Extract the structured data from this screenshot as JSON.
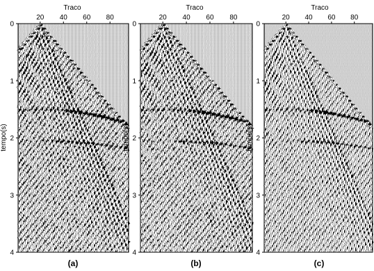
{
  "figure": {
    "panels": [
      {
        "id": "a",
        "label": "(a)",
        "x_title": "Traco",
        "y_title": "tempo(s)"
      },
      {
        "id": "b",
        "label": "(b)",
        "x_title": "Traco",
        "y_title": "tempo(s)"
      },
      {
        "id": "c",
        "label": "(c)",
        "x_title": "Traco",
        "y_title": "tempo(s)"
      }
    ],
    "x_ticks": [
      "20",
      "40",
      "60",
      "80"
    ],
    "x_tick_values": [
      20,
      40,
      60,
      80
    ],
    "y_ticks": [
      "0",
      "1",
      "2",
      "3",
      "4"
    ],
    "y_tick_values": [
      0,
      1,
      2,
      3,
      4
    ],
    "x_range": [
      1,
      96
    ],
    "y_range": [
      0,
      4
    ],
    "source_trace": 20
  }
}
